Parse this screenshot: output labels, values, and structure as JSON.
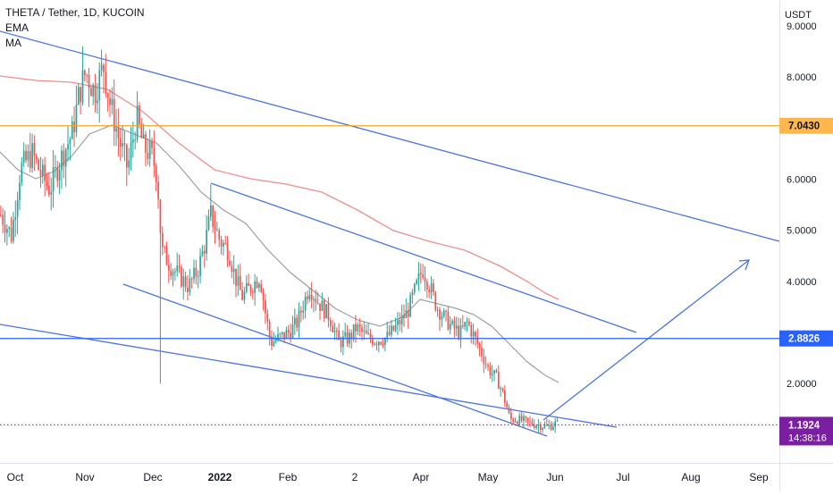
{
  "legend": {
    "symbol": "THETA / Tether, 1D, KUCOIN",
    "indicator1": "EMA",
    "indicator2": "MA"
  },
  "chart_data": {
    "type": "candlestick",
    "currency": "USDT",
    "y_ticks": [
      "9.0000",
      "8.0000",
      "6.0000",
      "5.0000",
      "4.0000",
      "2.0000"
    ],
    "x_ticks": [
      "Oct",
      "Nov",
      "Dec",
      "2022",
      "Feb",
      "2",
      "Apr",
      "May",
      "Jun",
      "Jul",
      "Aug",
      "Sep"
    ],
    "levels": [
      {
        "label": "7.0430",
        "value": 7.043,
        "color": "#f5a623",
        "style": "solid"
      },
      {
        "label": "2.8826",
        "value": 2.8826,
        "color": "#2962ff",
        "style": "solid"
      },
      {
        "label": "1.1924",
        "value": 1.1924,
        "color": "#7b1fa2",
        "style": "dotted",
        "countdown": "14:38:16"
      }
    ],
    "colors": {
      "up": "#26a69a",
      "down": "#ef5350",
      "trend": "#4a74e0",
      "ema": "#9e9e9e",
      "ma": "#e57373"
    }
  }
}
